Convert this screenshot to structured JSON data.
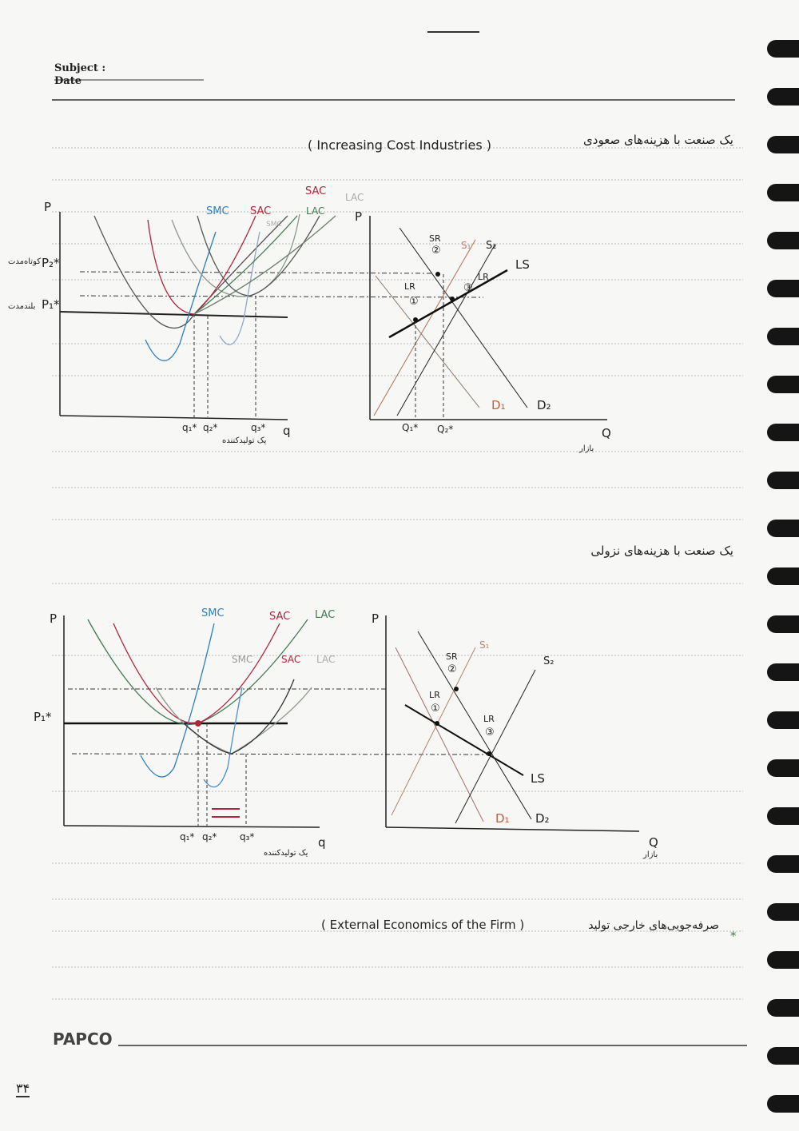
{
  "header": {
    "subject_label": "Subject :",
    "date_label": "Date"
  },
  "section1": {
    "title_fa": "یک صنعت با هزینه‌های صعودی",
    "title_en": "( Increasing   Cost   Industries )",
    "firm": {
      "p_axis": "P",
      "p2": "P₂*",
      "p2_note": "کوتاه‌مدت",
      "p1": "P₁*",
      "p1_note": "بلندمدت",
      "curves_top": [
        "SAC",
        "LAC"
      ],
      "curves": [
        "SMC",
        "SAC",
        "LAC"
      ],
      "curve_faded": "SMC",
      "q1": "q₁*",
      "q2": "q₂*",
      "q3": "q₃*",
      "q_axis": "q",
      "caption": "یک تولیدکننده"
    },
    "market": {
      "p_axis": "P",
      "sr": "SR",
      "sr_num": "②",
      "s1": "S₁",
      "s2": "S₂",
      "ls": "LS",
      "lr1": "LR",
      "lr1_num": "①",
      "lr2": "LR",
      "lr2_num": "③",
      "d1": "D₁",
      "d2": "D₂",
      "q1": "Q₁*",
      "q2": "Q₂*",
      "q_axis": "Q",
      "caption": "بازار"
    }
  },
  "section2": {
    "title_fa": "یک صنعت با هزینه‌های نزولی",
    "firm": {
      "p_axis": "P",
      "p1": "P₁*",
      "curves": [
        "SMC",
        "SAC",
        "LAC"
      ],
      "curves_faded": [
        "SMC",
        "SAC",
        "LAC"
      ],
      "q1": "q₁*",
      "q2": "q₂*",
      "q3": "q₃*",
      "q_axis": "q",
      "caption": "یک تولیدکننده"
    },
    "market": {
      "p_axis": "P",
      "s1": "S₁",
      "s2": "S₂",
      "sr": "SR",
      "sr_num": "②",
      "lr1": "LR",
      "lr1_num": "①",
      "lr2": "LR",
      "lr2_num": "③",
      "ls": "LS",
      "d1": "D₁",
      "d2": "D₂",
      "q_axis": "Q",
      "caption": "بازار"
    }
  },
  "footer_note": {
    "bullet": "*",
    "text_fa": "صرفه‌جویی‌های خارجی تولید",
    "text_en": "( External   Economics   of   the   Firm )"
  },
  "brand": "PAPCO",
  "page_number": "۳۴",
  "colors": {
    "smc": "#2b7fc2",
    "sac": "#b3233b",
    "lac": "#3f7a4e",
    "faded": "#9a9a9a",
    "ink": "#1e1e1e"
  }
}
